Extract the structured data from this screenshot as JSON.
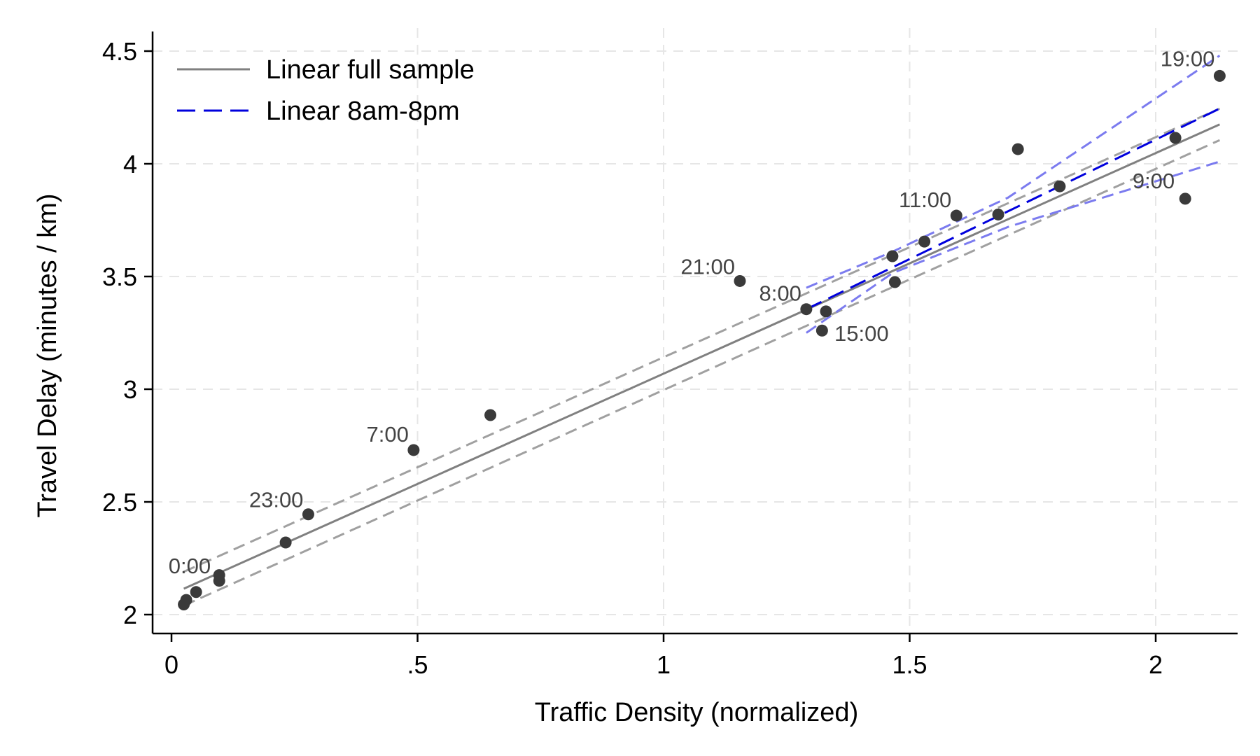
{
  "chart_data": {
    "type": "scatter",
    "xlabel": "Traffic Density (normalized)",
    "ylabel": "Travel Delay (minutes / km)",
    "xlim": [
      -0.04,
      2.17
    ],
    "ylim": [
      1.9,
      4.57
    ],
    "x_ticks": [
      {
        "value": 0,
        "label": "0"
      },
      {
        "value": 0.5,
        "label": ".5"
      },
      {
        "value": 1,
        "label": "1"
      },
      {
        "value": 1.5,
        "label": "1.5"
      },
      {
        "value": 2,
        "label": "2"
      }
    ],
    "y_ticks": [
      {
        "value": 2,
        "label": "2"
      },
      {
        "value": 2.5,
        "label": "2.5"
      },
      {
        "value": 3,
        "label": "3"
      },
      {
        "value": 3.5,
        "label": "3.5"
      },
      {
        "value": 4,
        "label": "4"
      },
      {
        "value": 4.5,
        "label": "4.5"
      }
    ],
    "grid": true,
    "legend_position": "top-left",
    "legend": [
      {
        "label": "Linear full sample",
        "style": "solid",
        "color": "#808080"
      },
      {
        "label": "Linear 8am-8pm",
        "style": "dashed",
        "color": "#0000dd"
      }
    ],
    "points": [
      {
        "x": 0.025,
        "y": 2.045,
        "label": ""
      },
      {
        "x": 0.03,
        "y": 2.065,
        "label": "0:00"
      },
      {
        "x": 0.05,
        "y": 2.1,
        "label": ""
      },
      {
        "x": 0.097,
        "y": 2.175,
        "label": ""
      },
      {
        "x": 0.097,
        "y": 2.15,
        "label": ""
      },
      {
        "x": 0.232,
        "y": 2.32,
        "label": ""
      },
      {
        "x": 0.278,
        "y": 2.445,
        "label": "23:00"
      },
      {
        "x": 0.492,
        "y": 2.73,
        "label": "7:00"
      },
      {
        "x": 0.648,
        "y": 2.885,
        "label": ""
      },
      {
        "x": 1.155,
        "y": 3.48,
        "label": "21:00"
      },
      {
        "x": 1.29,
        "y": 3.355,
        "label": "8:00"
      },
      {
        "x": 1.322,
        "y": 3.26,
        "label": ""
      },
      {
        "x": 1.33,
        "y": 3.345,
        "label": "15:00"
      },
      {
        "x": 1.465,
        "y": 3.59,
        "label": ""
      },
      {
        "x": 1.47,
        "y": 3.475,
        "label": ""
      },
      {
        "x": 1.53,
        "y": 3.655,
        "label": ""
      },
      {
        "x": 1.595,
        "y": 3.77,
        "label": "11:00"
      },
      {
        "x": 1.68,
        "y": 3.775,
        "label": ""
      },
      {
        "x": 1.72,
        "y": 4.065,
        "label": ""
      },
      {
        "x": 1.805,
        "y": 3.9,
        "label": ""
      },
      {
        "x": 2.04,
        "y": 4.115,
        "label": ""
      },
      {
        "x": 2.06,
        "y": 3.845,
        "label": "9:00"
      },
      {
        "x": 2.13,
        "y": 4.39,
        "label": "19:00"
      }
    ],
    "series": [
      {
        "name": "Linear full sample",
        "style": "solid",
        "color": "#808080",
        "x": [
          0.025,
          2.13
        ],
        "y": [
          2.115,
          4.175
        ]
      },
      {
        "name": "",
        "style": "ci-dashed",
        "color": "#a0a0a0",
        "x": [
          0.025,
          2.13
        ],
        "y": [
          2.19,
          4.245
        ]
      },
      {
        "name": "",
        "style": "ci-dashed",
        "color": "#a0a0a0",
        "x": [
          0.025,
          2.13
        ],
        "y": [
          2.04,
          4.105
        ]
      },
      {
        "name": "Linear 8am-8pm",
        "style": "dashed",
        "color": "#0000dd",
        "x": [
          1.29,
          2.13
        ],
        "y": [
          3.355,
          4.245
        ]
      },
      {
        "name": "",
        "style": "ci-dashed",
        "color": "#7b7bef",
        "x": [
          1.29,
          1.465,
          1.7,
          2.13
        ],
        "y": [
          3.45,
          3.61,
          3.85,
          4.48
        ]
      },
      {
        "name": "",
        "style": "ci-dashed",
        "color": "#7b7bef",
        "x": [
          1.29,
          1.465,
          1.7,
          2.13
        ],
        "y": [
          3.25,
          3.515,
          3.72,
          4.01
        ]
      }
    ]
  }
}
